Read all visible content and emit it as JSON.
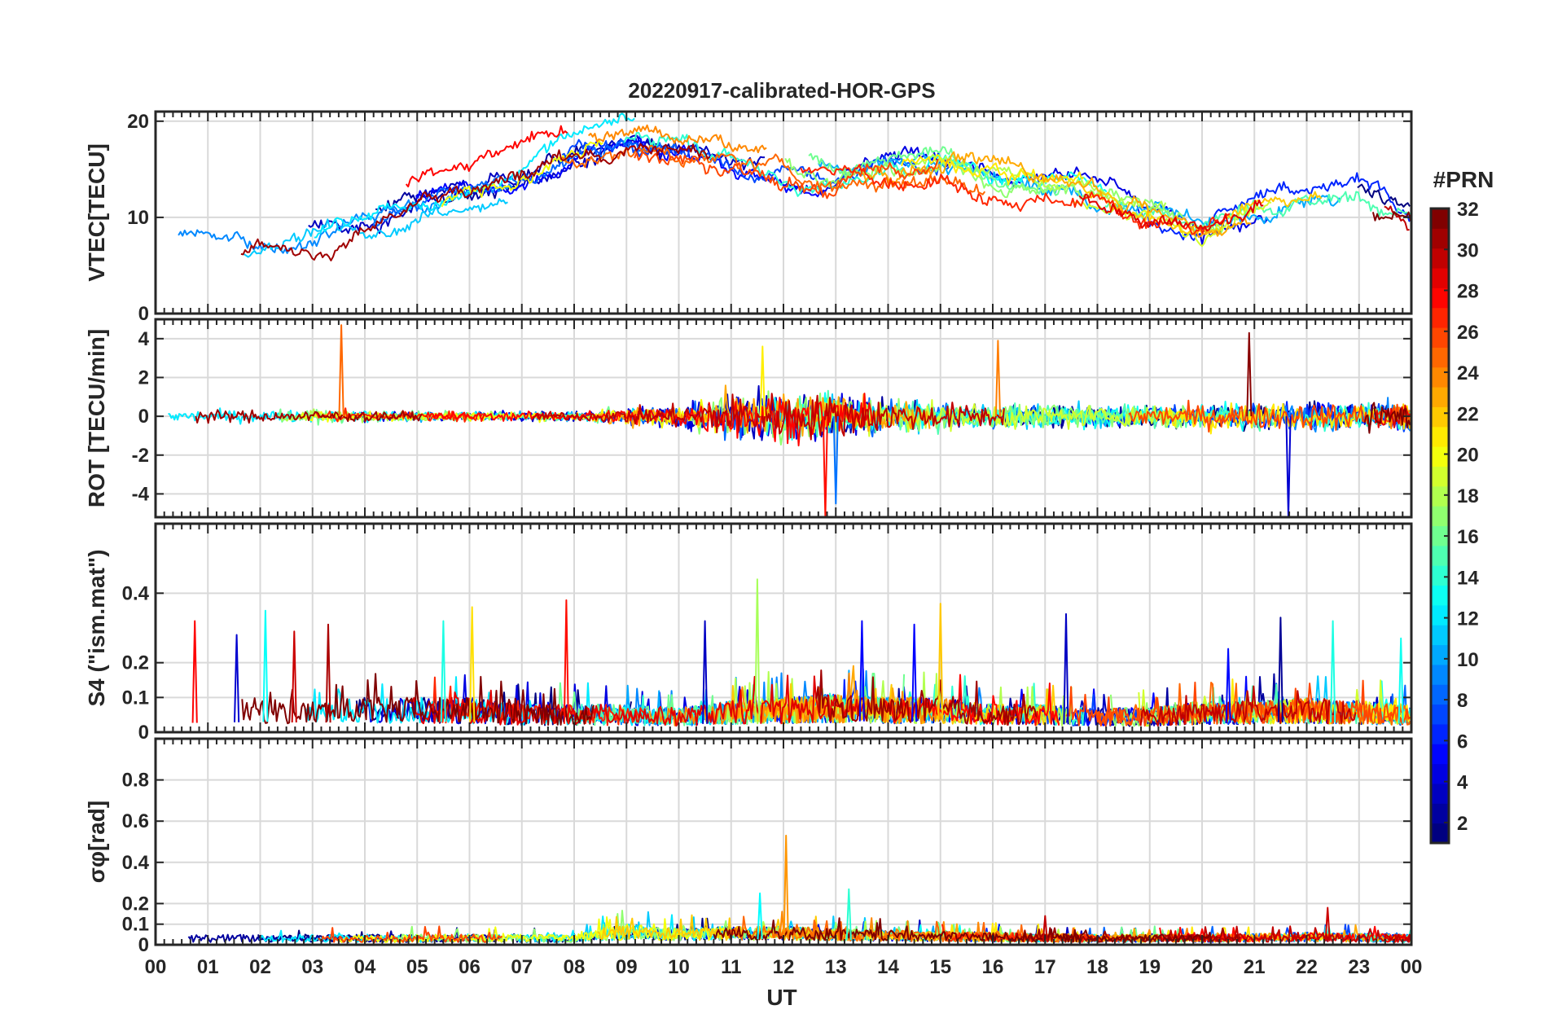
{
  "title": "20220917-calibrated-HOR-GPS",
  "xlabel": "UT",
  "colorbar": {
    "label": "#PRN",
    "range": [
      1,
      32
    ],
    "ticks": [
      "2",
      "4",
      "6",
      "8",
      "10",
      "12",
      "14",
      "16",
      "18",
      "20",
      "22",
      "24",
      "26",
      "28",
      "30",
      "32"
    ],
    "colormap": "jet"
  },
  "chart_data": [
    {
      "type": "line",
      "ylabel": "VTEC[TECU]",
      "ylim": [
        0,
        21
      ],
      "yticks": [
        0,
        10,
        20
      ],
      "xlim": [
        0,
        24
      ],
      "xticklabels": [
        "00",
        "01",
        "02",
        "03",
        "04",
        "05",
        "06",
        "07",
        "08",
        "09",
        "10",
        "11",
        "12",
        "13",
        "14",
        "15",
        "16",
        "17",
        "18",
        "19",
        "20",
        "21",
        "22",
        "23",
        "00"
      ],
      "grid": true,
      "series_note": "one trace per GPS PRN, colored by PRN",
      "envelope": {
        "x": [
          0,
          1,
          2,
          3,
          4,
          5,
          6,
          7,
          8,
          9,
          10,
          11,
          12,
          13,
          14,
          15,
          16,
          17,
          18,
          19,
          20,
          21,
          22,
          23,
          24
        ],
        "y": [
          7,
          8,
          8,
          8,
          10,
          12,
          13,
          15,
          17,
          18,
          17,
          16,
          15,
          14,
          15,
          15,
          14,
          14,
          13,
          11,
          9,
          11,
          12,
          12,
          10
        ]
      }
    },
    {
      "type": "line",
      "ylabel": "ROT [TECU/min]",
      "ylim": [
        -5.2,
        5
      ],
      "yticks": [
        -4,
        -2,
        0,
        2,
        4
      ],
      "grid": true,
      "envelope": {
        "x": [
          0,
          2,
          4,
          6,
          8,
          10,
          11,
          12,
          13,
          14,
          16,
          18,
          20,
          22,
          24
        ],
        "y": [
          0.4,
          0.4,
          0.4,
          0.3,
          0.3,
          0.8,
          1.5,
          1.6,
          1.4,
          1.0,
          0.8,
          0.7,
          0.8,
          0.9,
          0.9
        ]
      },
      "spikes": [
        {
          "x": 3.55,
          "y": 4.7
        },
        {
          "x": 11.6,
          "y": 3.6
        },
        {
          "x": 12.8,
          "y": -5.2
        },
        {
          "x": 13.0,
          "y": -4.5
        },
        {
          "x": 16.1,
          "y": 3.9
        },
        {
          "x": 20.9,
          "y": 4.3
        },
        {
          "x": 21.65,
          "y": -5.2
        }
      ]
    },
    {
      "type": "line",
      "ylabel": "S4 (\"ism.mat\")",
      "ylim": [
        0,
        0.6
      ],
      "yticks": [
        0,
        0.1,
        0.2,
        0.4
      ],
      "grid": true,
      "envelope": {
        "x": [
          0,
          1,
          2,
          3,
          4,
          5,
          6,
          7,
          8,
          9,
          10,
          11,
          12,
          13,
          14,
          15,
          16,
          17,
          18,
          19,
          20,
          21,
          22,
          23,
          24
        ],
        "y": [
          0.09,
          0.09,
          0.1,
          0.09,
          0.1,
          0.1,
          0.1,
          0.08,
          0.08,
          0.08,
          0.07,
          0.09,
          0.1,
          0.11,
          0.1,
          0.1,
          0.08,
          0.08,
          0.07,
          0.07,
          0.09,
          0.09,
          0.1,
          0.09,
          0.08
        ]
      },
      "spikes": [
        {
          "x": 0.75,
          "y": 0.32
        },
        {
          "x": 1.55,
          "y": 0.28
        },
        {
          "x": 2.1,
          "y": 0.35
        },
        {
          "x": 2.65,
          "y": 0.29
        },
        {
          "x": 3.3,
          "y": 0.31
        },
        {
          "x": 5.5,
          "y": 0.32
        },
        {
          "x": 6.05,
          "y": 0.36
        },
        {
          "x": 7.85,
          "y": 0.38
        },
        {
          "x": 10.5,
          "y": 0.32
        },
        {
          "x": 11.5,
          "y": 0.44
        },
        {
          "x": 13.5,
          "y": 0.32
        },
        {
          "x": 14.5,
          "y": 0.31
        },
        {
          "x": 15.0,
          "y": 0.37
        },
        {
          "x": 17.4,
          "y": 0.34
        },
        {
          "x": 20.5,
          "y": 0.24
        },
        {
          "x": 21.5,
          "y": 0.33
        },
        {
          "x": 22.5,
          "y": 0.32
        },
        {
          "x": 23.8,
          "y": 0.27
        }
      ]
    },
    {
      "type": "line",
      "ylabel": "σφ[rad]",
      "ylim": [
        0,
        1
      ],
      "yticks": [
        0,
        0.1,
        0.2,
        0.4,
        0.6,
        0.8
      ],
      "grid": true,
      "envelope": {
        "x": [
          0,
          2,
          4,
          6,
          8,
          9,
          10,
          11,
          12,
          13,
          14,
          16,
          18,
          20,
          22,
          24
        ],
        "y": [
          0.05,
          0.05,
          0.05,
          0.05,
          0.05,
          0.1,
          0.08,
          0.09,
          0.09,
          0.08,
          0.07,
          0.06,
          0.05,
          0.05,
          0.06,
          0.05
        ]
      },
      "spikes": [
        {
          "x": 11.55,
          "y": 0.25
        },
        {
          "x": 12.05,
          "y": 0.53
        },
        {
          "x": 13.25,
          "y": 0.27
        },
        {
          "x": 17.0,
          "y": 0.14
        },
        {
          "x": 22.4,
          "y": 0.18
        }
      ]
    }
  ]
}
